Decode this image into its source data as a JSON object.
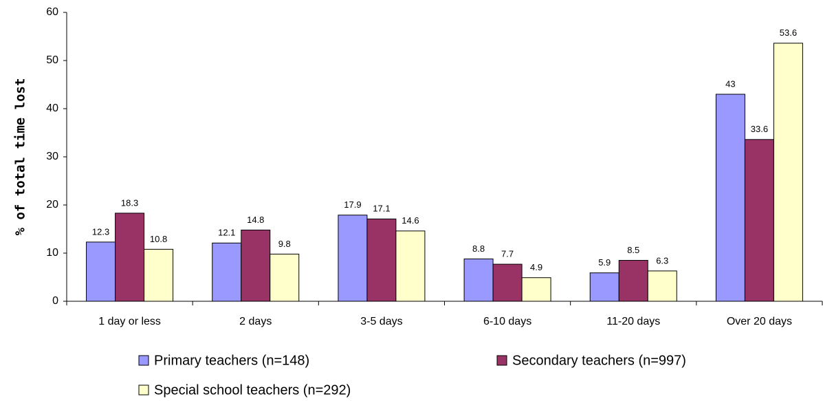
{
  "chart_data": {
    "type": "bar",
    "y_label": "% of total time lost",
    "categories": [
      "1 day or less",
      "2 days",
      "3-5 days",
      "6-10 days",
      "11-20 days",
      "Over 20 days"
    ],
    "series": [
      {
        "name": "Primary teachers (n=148)",
        "color": "#9999ff",
        "values": [
          12.3,
          12.1,
          17.9,
          8.8,
          5.9,
          43
        ]
      },
      {
        "name": "Secondary teachers (n=997)",
        "color": "#993366",
        "values": [
          18.3,
          14.8,
          17.1,
          7.7,
          8.5,
          33.6
        ]
      },
      {
        "name": "Special school teachers (n=292)",
        "color": "#ffffcc",
        "values": [
          10.8,
          9.8,
          14.6,
          4.9,
          6.3,
          53.6
        ]
      }
    ],
    "ylim": [
      0,
      60
    ],
    "yticks": [
      0,
      10,
      20,
      30,
      40,
      50,
      60
    ],
    "legend": "bottom"
  }
}
